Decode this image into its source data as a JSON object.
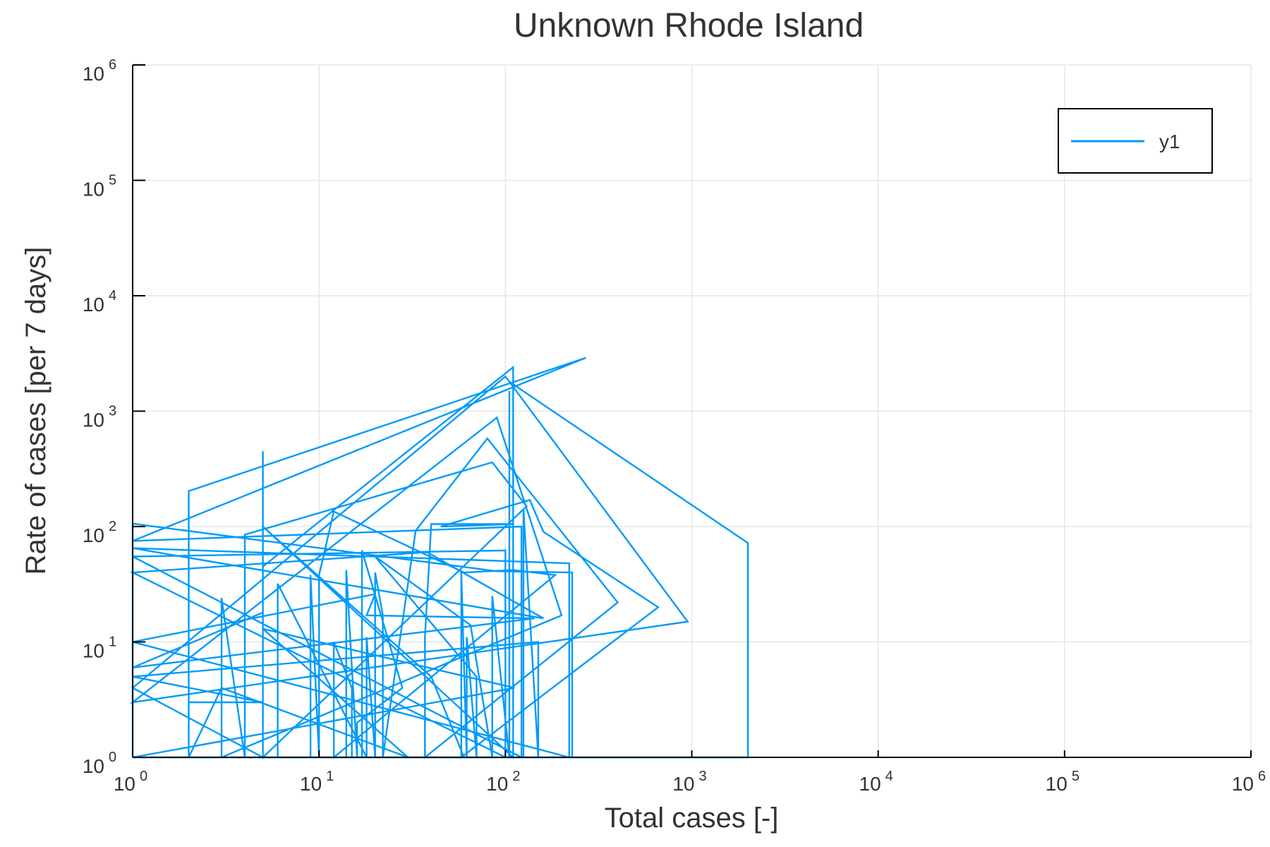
{
  "chart_data": {
    "type": "line",
    "title": "Unknown Rhode Island",
    "xlabel": "Total cases [-]",
    "ylabel": "Rate of cases [per 7 days]",
    "xscale": "log",
    "yscale": "log",
    "xlim": [
      1,
      1000000
    ],
    "ylim": [
      1,
      1000000
    ],
    "grid": true,
    "legend_position": "top-right",
    "x_ticks": [
      {
        "base": "10",
        "exp": "0",
        "value": 1
      },
      {
        "base": "10",
        "exp": "1",
        "value": 10
      },
      {
        "base": "10",
        "exp": "2",
        "value": 100
      },
      {
        "base": "10",
        "exp": "3",
        "value": 1000
      },
      {
        "base": "10",
        "exp": "4",
        "value": 10000
      },
      {
        "base": "10",
        "exp": "5",
        "value": 100000
      },
      {
        "base": "10",
        "exp": "6",
        "value": 1000000
      }
    ],
    "y_ticks": [
      {
        "base": "10",
        "exp": "0",
        "value": 1
      },
      {
        "base": "10",
        "exp": "1",
        "value": 10
      },
      {
        "base": "10",
        "exp": "2",
        "value": 100
      },
      {
        "base": "10",
        "exp": "3",
        "value": 1000
      },
      {
        "base": "10",
        "exp": "4",
        "value": 10000
      },
      {
        "base": "10",
        "exp": "5",
        "value": 100000
      },
      {
        "base": "10",
        "exp": "6",
        "value": 1000000
      }
    ],
    "series": [
      {
        "name": "y1",
        "color": "#009af9",
        "points": [
          [
            1,
            1
          ],
          [
            1,
            106
          ],
          [
            90,
            41
          ],
          [
            228,
            40
          ],
          [
            228,
            1
          ],
          [
            2,
            1
          ],
          [
            2,
            203
          ],
          [
            270,
            2900
          ],
          [
            1,
            75
          ],
          [
            122,
            100
          ],
          [
            122,
            1
          ],
          [
            1,
            55
          ],
          [
            100,
            62
          ],
          [
            100,
            1
          ],
          [
            1,
            40
          ],
          [
            38,
            60
          ],
          [
            160,
            16
          ],
          [
            1,
            65
          ],
          [
            220,
            48
          ],
          [
            220,
            1
          ],
          [
            1,
            10
          ],
          [
            20,
            26
          ],
          [
            18,
            17
          ],
          [
            143,
            16
          ],
          [
            1,
            6
          ],
          [
            5,
            18
          ],
          [
            5,
            1
          ],
          [
            1,
            4
          ],
          [
            100,
            2000
          ],
          [
            950,
            15
          ],
          [
            1,
            3
          ],
          [
            90,
            880
          ],
          [
            200,
            17
          ],
          [
            3,
            1
          ],
          [
            3,
            24
          ],
          [
            4,
            1
          ],
          [
            4,
            85
          ],
          [
            85,
            360
          ],
          [
            130,
            150
          ],
          [
            5,
            1
          ],
          [
            5,
            450
          ],
          [
            5,
            45
          ],
          [
            110,
            2400
          ],
          [
            110,
            1
          ],
          [
            5,
            100
          ],
          [
            40,
            5
          ],
          [
            60,
            1
          ],
          [
            6,
            1
          ],
          [
            6,
            25
          ],
          [
            6,
            32
          ],
          [
            18,
            1
          ],
          [
            9,
            1
          ],
          [
            9,
            38
          ],
          [
            10,
            1
          ],
          [
            10,
            38
          ],
          [
            12,
            135
          ],
          [
            60,
            40
          ],
          [
            110,
            42
          ],
          [
            185,
            38
          ],
          [
            12,
            1
          ],
          [
            12,
            10
          ],
          [
            15,
            4
          ],
          [
            15,
            1
          ],
          [
            14,
            1
          ],
          [
            14,
            42
          ],
          [
            16,
            1
          ],
          [
            16,
            2
          ],
          [
            28,
            4
          ],
          [
            17,
            62
          ],
          [
            17,
            1
          ],
          [
            18,
            1
          ],
          [
            18,
            11
          ],
          [
            20,
            1
          ],
          [
            20,
            40
          ],
          [
            22,
            17
          ],
          [
            22,
            1
          ],
          [
            33,
            92
          ],
          [
            80,
            580
          ],
          [
            400,
            22
          ],
          [
            37,
            1
          ],
          [
            37,
            11
          ],
          [
            40,
            105
          ],
          [
            110,
            105
          ],
          [
            45,
            100
          ],
          [
            135,
            170
          ],
          [
            160,
            90
          ],
          [
            660,
            20
          ],
          [
            58,
            1
          ],
          [
            58,
            40
          ],
          [
            62,
            1
          ],
          [
            62,
            11
          ],
          [
            70,
            1
          ],
          [
            70,
            5
          ],
          [
            20,
            55
          ],
          [
            65,
            14
          ],
          [
            85,
            1
          ],
          [
            85,
            25
          ],
          [
            105,
            1
          ],
          [
            105,
            1500
          ],
          [
            105,
            1
          ],
          [
            125,
            1
          ],
          [
            125,
            140
          ],
          [
            150,
            1
          ],
          [
            150,
            10
          ],
          [
            1,
            5
          ],
          [
            5,
            3
          ],
          [
            2,
            3
          ],
          [
            2,
            1
          ],
          [
            3,
            4
          ],
          [
            30,
            1
          ],
          [
            5,
            13
          ],
          [
            112,
            4
          ],
          [
            1,
            1
          ],
          [
            2000,
            1
          ],
          [
            2000,
            72
          ],
          [
            105,
            1800
          ]
        ]
      }
    ]
  }
}
